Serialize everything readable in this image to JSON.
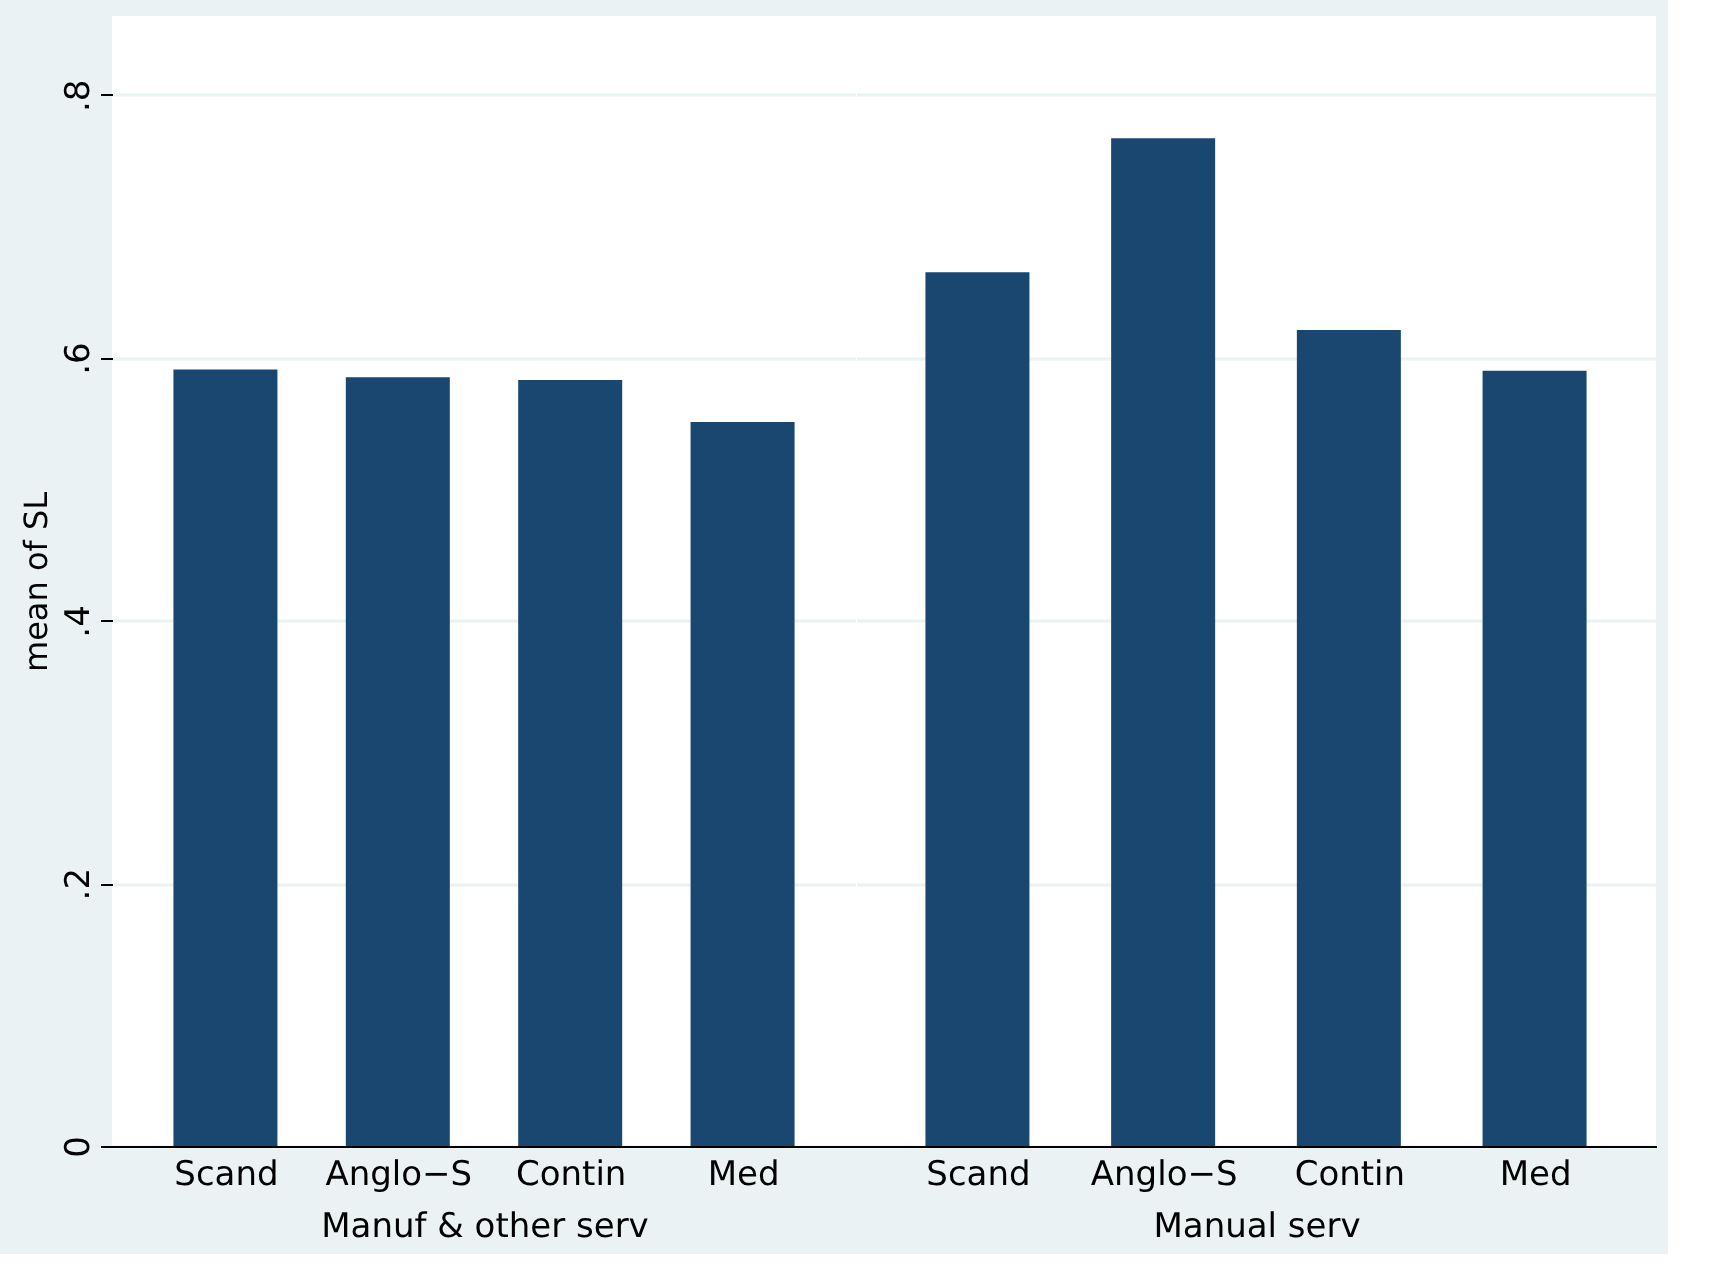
{
  "chart_data": [
    {
      "type": "bar",
      "categories": [
        "Scand",
        "Anglo−S",
        "Contin",
        "Med"
      ],
      "xlabel": "Manuf & other serv",
      "ylabel": "mean of SL",
      "values": [
        0.591,
        0.585,
        0.583,
        0.551
      ],
      "color": "#1a476f",
      "ylim": [
        0,
        0.86
      ],
      "yticks": [
        {
          "value": 0,
          "label": "0"
        },
        {
          "value": 0.2,
          "label": ".2"
        },
        {
          "value": 0.4,
          "label": ".4"
        },
        {
          "value": 0.6,
          "label": ".6"
        },
        {
          "value": 0.8,
          "label": ".8"
        }
      ],
      "grid": "y"
    },
    {
      "type": "bar",
      "categories": [
        "Scand",
        "Anglo−S",
        "Contin",
        "Med"
      ],
      "xlabel": "Manual serv",
      "values": [
        0.665,
        0.767,
        0.621,
        0.59
      ],
      "color": "#1a476f",
      "ylim": [
        0,
        0.86
      ],
      "yticks": [
        0,
        0.2,
        0.4,
        0.6,
        0.8
      ],
      "grid": "y",
      "tick_labels": "x"
    }
  ]
}
